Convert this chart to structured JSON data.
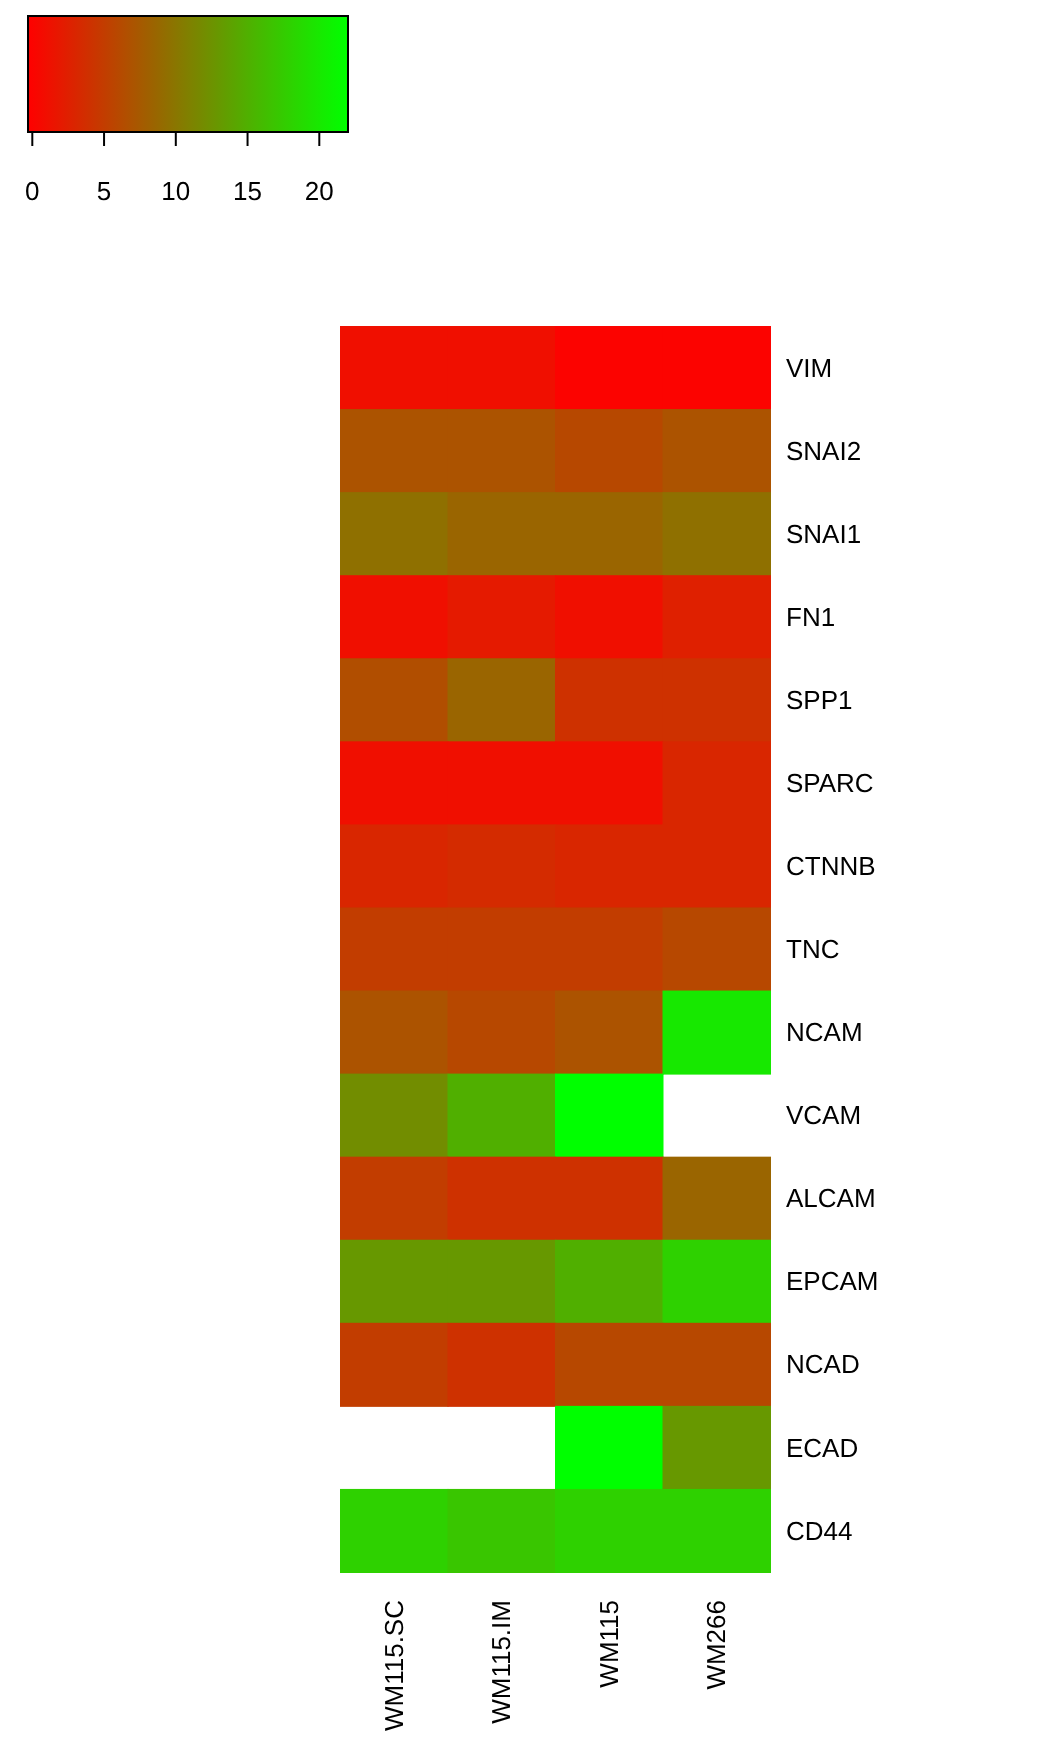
{
  "chart_data": {
    "type": "heatmap",
    "categories": [
      "WM115.SC",
      "WM115.IM",
      "WM115",
      "WM266"
    ],
    "y_categories": [
      "VIM",
      "SNAI2",
      "SNAI1",
      "FN1",
      "SPP1",
      "SPARC",
      "CTNNB",
      "TNC",
      "NCAM",
      "VCAM",
      "ALCAM",
      "EPCAM",
      "NCAD",
      "ECAD",
      "CD44"
    ],
    "cells": [
      [
        1,
        1,
        0,
        0
      ],
      [
        7,
        7,
        6,
        7
      ],
      [
        9.5,
        8.5,
        8.5,
        9.5
      ],
      [
        1,
        2,
        1,
        2.5
      ],
      [
        6.5,
        8.5,
        4,
        4
      ],
      [
        1,
        1,
        1,
        3
      ],
      [
        3,
        3.5,
        3,
        3
      ],
      [
        5,
        5,
        5,
        6
      ],
      [
        7,
        6,
        7,
        20
      ],
      [
        12,
        15,
        22,
        null
      ],
      [
        5,
        4,
        4,
        8.5
      ],
      [
        13,
        13,
        15,
        18
      ],
      [
        5,
        4,
        6,
        6
      ],
      [
        null,
        null,
        22,
        13
      ],
      [
        18,
        17,
        18,
        18
      ]
    ],
    "clim": [
      -0.3,
      22
    ],
    "cticks": [
      0,
      5,
      10,
      15,
      20
    ]
  }
}
